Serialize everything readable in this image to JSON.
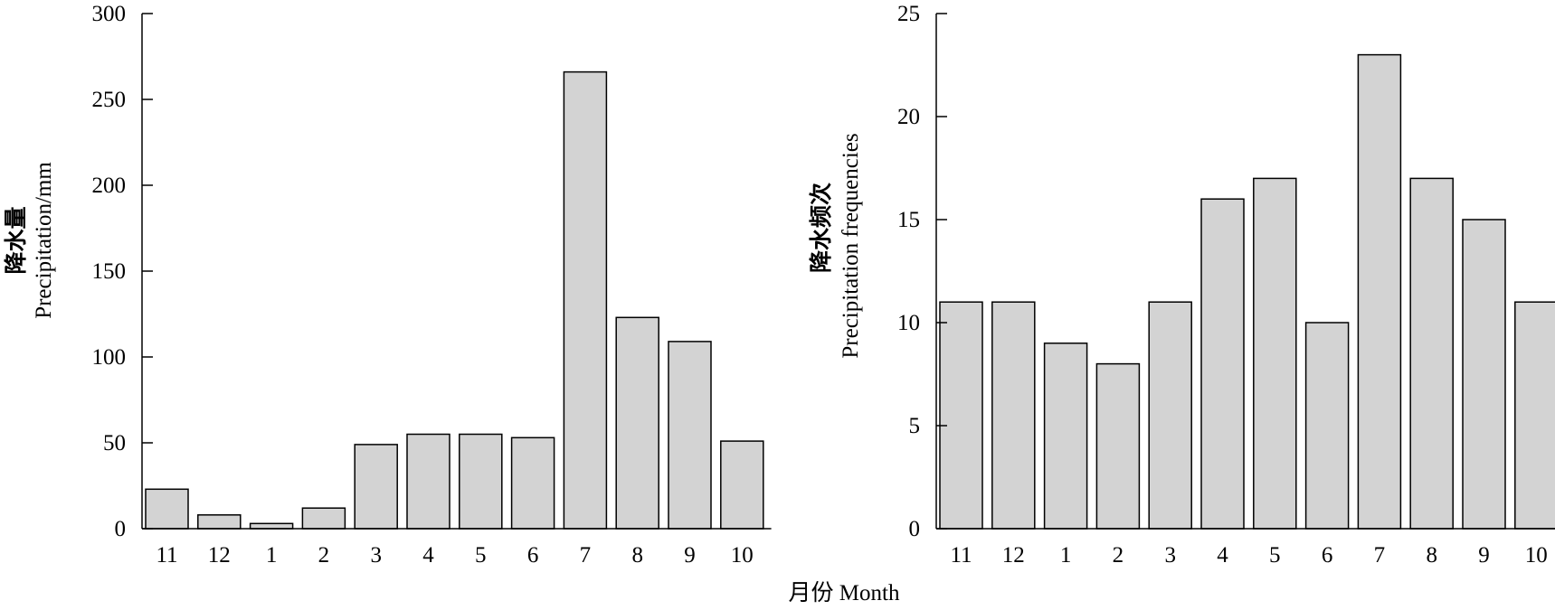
{
  "figure": {
    "shared_xlabel": "月份 Month"
  },
  "chart_data": [
    {
      "type": "bar",
      "categories": [
        "11",
        "12",
        "1",
        "2",
        "3",
        "4",
        "5",
        "6",
        "7",
        "8",
        "9",
        "10"
      ],
      "values": [
        23,
        8,
        3,
        12,
        49,
        55,
        55,
        53,
        266,
        123,
        109,
        51
      ],
      "ylabel_cn": "降水量",
      "ylabel": "Precipitation/mm",
      "ylim": [
        0,
        300
      ],
      "yticks": [
        0,
        50,
        100,
        150,
        200,
        250,
        300
      ],
      "grid": false,
      "legend": false,
      "bar_color": "#d3d3d3",
      "edge_color": "#000000"
    },
    {
      "type": "bar",
      "categories": [
        "11",
        "12",
        "1",
        "2",
        "3",
        "4",
        "5",
        "6",
        "7",
        "8",
        "9",
        "10"
      ],
      "values": [
        11,
        11,
        9,
        8,
        11,
        16,
        17,
        10,
        23,
        17,
        15,
        11
      ],
      "ylabel_cn": "降水频次",
      "ylabel": "Precipitation frequencies",
      "ylim": [
        0,
        25
      ],
      "yticks": [
        0,
        5,
        10,
        15,
        20,
        25
      ],
      "grid": false,
      "legend": false,
      "bar_color": "#d3d3d3",
      "edge_color": "#000000"
    }
  ]
}
